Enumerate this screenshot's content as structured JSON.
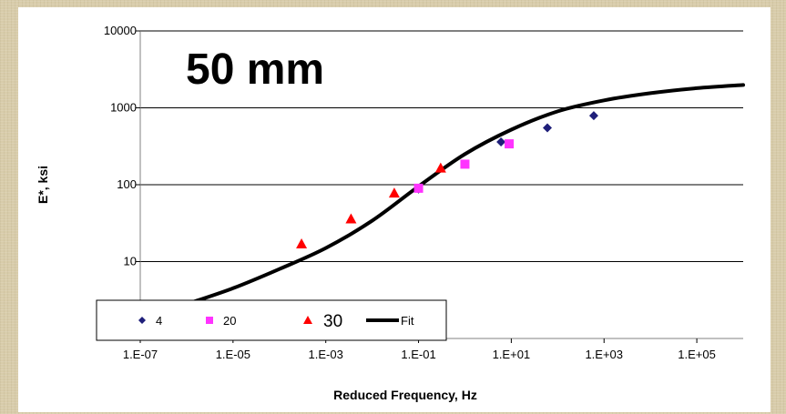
{
  "chart_data": {
    "type": "scatter",
    "title": "50 mm",
    "xlabel": "Reduced Frequency, Hz",
    "ylabel": "E*, ksi",
    "xscale": "log",
    "yscale": "log",
    "xlim": [
      1e-07,
      1000000.0
    ],
    "ylim": [
      1,
      10000
    ],
    "x_ticks": [
      "1.E-07",
      "1.E-05",
      "1.E-03",
      "1.E-01",
      "1.E+01",
      "1.E+03",
      "1.E+05"
    ],
    "y_ticks": [
      "10",
      "100",
      "1000",
      "10000"
    ],
    "grid": "horizontal",
    "legend_position": "bottom-left",
    "colors": {
      "s4": "#1f1f7a",
      "s20": "#ff33ff",
      "s30": "#ff0000",
      "fit": "#000000"
    },
    "series": [
      {
        "name": "4",
        "marker": "diamond",
        "points": [
          [
            0.1,
            88
          ],
          [
            6.0,
            360
          ],
          [
            60.0,
            550
          ],
          [
            600.0,
            790
          ]
        ]
      },
      {
        "name": "20",
        "marker": "square",
        "points": [
          [
            0.1,
            90
          ],
          [
            1.0,
            185
          ],
          [
            9.0,
            340
          ]
        ]
      },
      {
        "name": "30",
        "marker": "triangle",
        "points": [
          [
            0.0003,
            17
          ],
          [
            0.0035,
            36
          ],
          [
            0.03,
            78
          ],
          [
            0.3,
            165
          ]
        ]
      },
      {
        "name": "Fit",
        "marker": "line",
        "points": [
          [
            1e-06,
            2.8
          ],
          [
            1e-05,
            4.5
          ],
          [
            0.0001,
            8.0
          ],
          [
            0.001,
            15
          ],
          [
            0.01,
            34
          ],
          [
            0.1,
            95
          ],
          [
            1,
            250
          ],
          [
            10,
            520
          ],
          [
            100,
            900
          ],
          [
            1000,
            1250
          ],
          [
            10000,
            1550
          ],
          [
            100000,
            1800
          ],
          [
            1000000,
            1980
          ]
        ]
      }
    ]
  }
}
